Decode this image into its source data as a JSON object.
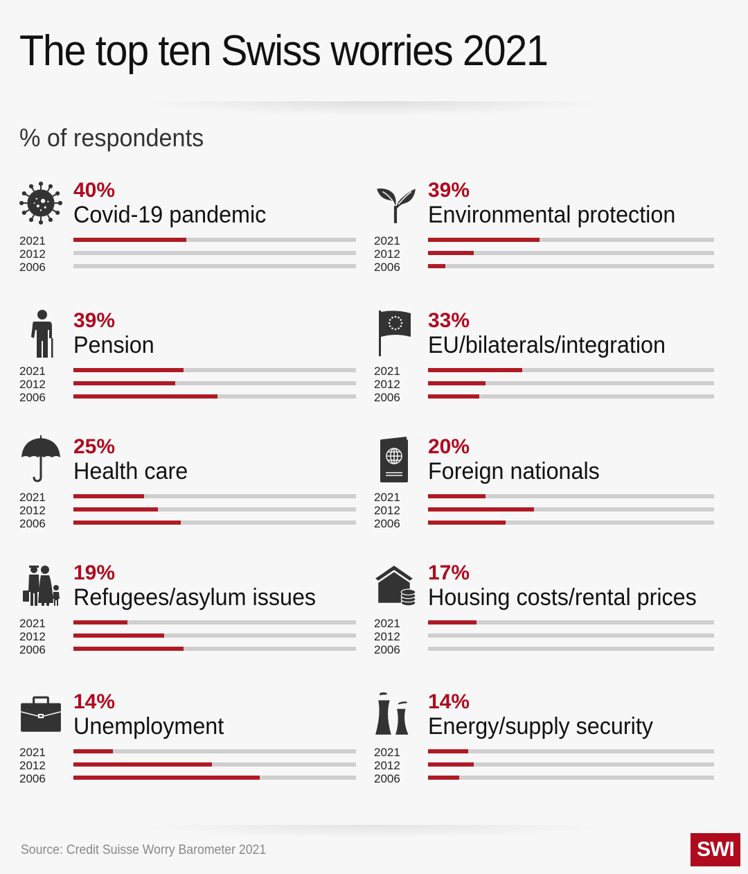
{
  "header": {
    "title": "The top ten Swiss worries 2021",
    "subtitle": "% of respondents"
  },
  "years": [
    "2021",
    "2012",
    "2006"
  ],
  "items": [
    {
      "icon": "virus-icon",
      "pct": "40%",
      "label": "Covid-19 pandemic",
      "values": [
        40,
        0,
        0
      ]
    },
    {
      "icon": "plant-icon",
      "pct": "39%",
      "label": "Environmental protection",
      "values": [
        39,
        16,
        6
      ]
    },
    {
      "icon": "elderly-person-icon",
      "pct": "39%",
      "label": "Pension",
      "values": [
        39,
        36,
        51
      ]
    },
    {
      "icon": "eu-flag-icon",
      "pct": "33%",
      "label": "EU/bilaterals/integration",
      "values": [
        33,
        20,
        18
      ]
    },
    {
      "icon": "umbrella-icon",
      "pct": "25%",
      "label": "Health care",
      "values": [
        25,
        30,
        38
      ]
    },
    {
      "icon": "passport-icon",
      "pct": "20%",
      "label": "Foreign nationals",
      "values": [
        20,
        37,
        27
      ]
    },
    {
      "icon": "refugee-family-icon",
      "pct": "19%",
      "label": "Refugees/asylum issues",
      "values": [
        19,
        32,
        39
      ]
    },
    {
      "icon": "house-coins-icon",
      "pct": "17%",
      "label": "Housing costs/rental prices",
      "values": [
        17,
        0,
        0
      ]
    },
    {
      "icon": "briefcase-icon",
      "pct": "14%",
      "label": "Unemployment",
      "values": [
        14,
        49,
        66
      ]
    },
    {
      "icon": "cooling-tower-icon",
      "pct": "14%",
      "label": "Energy/supply security",
      "values": [
        14,
        16,
        11
      ]
    }
  ],
  "footer": {
    "source": "Source: Credit Suisse Worry Barometer 2021",
    "logo": "SWI"
  },
  "colors": {
    "accent": "#b00a1e",
    "bar_fill": "#b01a24",
    "bar_track": "#cfcfcf",
    "icon": "#333333",
    "background": "#f7f7f7"
  },
  "chart_data": {
    "type": "bar",
    "orientation": "horizontal",
    "title": "The top ten Swiss worries 2021",
    "subtitle": "% of respondents",
    "categories": [
      "Covid-19 pandemic",
      "Environmental protection",
      "Pension",
      "EU/bilaterals/integration",
      "Health care",
      "Foreign nationals",
      "Refugees/asylum issues",
      "Housing costs/rental prices",
      "Unemployment",
      "Energy/supply security"
    ],
    "series": [
      {
        "name": "2021",
        "values": [
          40,
          39,
          39,
          33,
          25,
          20,
          19,
          17,
          14,
          14
        ]
      },
      {
        "name": "2012",
        "values": [
          0,
          16,
          36,
          20,
          30,
          37,
          32,
          0,
          49,
          16
        ]
      },
      {
        "name": "2006",
        "values": [
          0,
          6,
          51,
          18,
          38,
          27,
          39,
          0,
          66,
          11
        ]
      }
    ],
    "xlim": [
      0,
      100
    ],
    "xlabel": "",
    "ylabel": "% of respondents",
    "grid": false,
    "source": "Source: Credit Suisse Worry Barometer 2021"
  }
}
